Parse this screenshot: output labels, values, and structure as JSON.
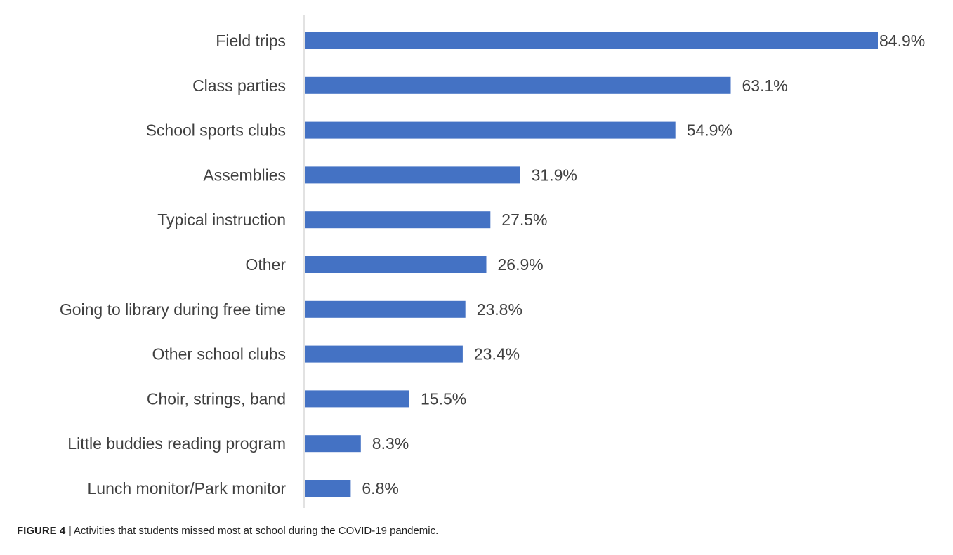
{
  "chart_data": {
    "type": "bar",
    "orientation": "horizontal",
    "categories": [
      "Field trips",
      "Class parties",
      "School sports clubs",
      "Assemblies",
      "Typical instruction",
      "Other",
      "Going to library during free time",
      "Other school clubs",
      "Choir, strings, band",
      "Little buddies reading program",
      "Lunch monitor/Park monitor"
    ],
    "values": [
      84.9,
      63.1,
      54.9,
      31.9,
      27.5,
      26.9,
      23.8,
      23.4,
      15.5,
      8.3,
      6.8
    ],
    "value_labels": [
      "84.9%",
      "63.1%",
      "54.9%",
      "31.9%",
      "27.5%",
      "26.9%",
      "23.8%",
      "23.4%",
      "15.5%",
      "8.3%",
      "6.8%"
    ],
    "xlim": [
      0,
      84.9
    ],
    "grid": false,
    "legend": "none",
    "bar_color": "#4472c4",
    "axis_color": "#d9d9d9"
  },
  "caption": {
    "label": "FIGURE 4 |",
    "text": " Activities that students missed most at school during the COVID-19 pandemic."
  }
}
